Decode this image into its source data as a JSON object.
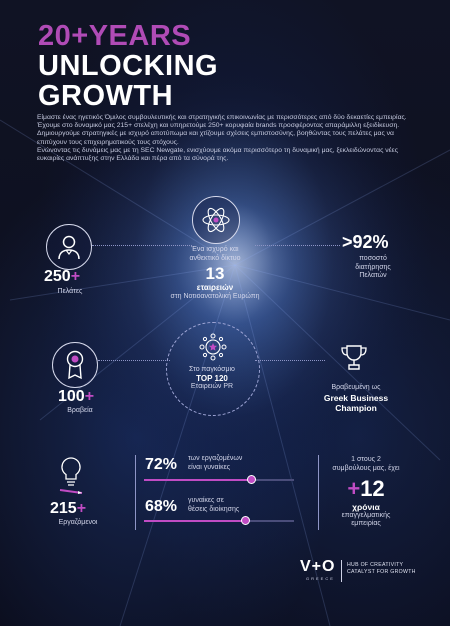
{
  "title": {
    "line1": "20+YEARS",
    "line2": "UNLOCKING",
    "line3": "GROWTH"
  },
  "intro": {
    "p1": "Είμαστε ένας ηγετικός Όμιλος συμβουλευτικής και στρατηγικής επικοινωνίας με περισσότερες από δύο δεκαετίες εμπειρίας. Έχουμε στο δυναμικό μας 215+ στελέχη και υπηρετούμε 250+ κορυφαία brands προσφέροντας απαράμιλλη εξειδίκευση.",
    "p2": "Δημιουργούμε στρατηγικές με ισχυρό αποτύπωμα και χτίζουμε σχέσεις εμπιστοσύνης, βοηθώντας τους πελάτες μας να επιτύχουν τους επιχειρηματικούς τους στόχους.",
    "p3": "Ενώνοντας τις δυνάμεις μας με τη SEC Newgate, ενισχύουμε ακόμα περισσότερο τη δυναμική μας, ξεκλειδώνοντας νέες ευκαιρίες ανάπτυξης στην Ελλάδα και πέρα από τα σύνορά της."
  },
  "stats": {
    "clients": {
      "number": "250",
      "plus": "+",
      "label": "Πελάτες"
    },
    "network": {
      "line1": "Ένα ισχυρό και",
      "line2": "ανθεκτικό δίκτυο",
      "number": "13",
      "unit": "εταιρειών",
      "line3": "στη Νοτιοανατολική Ευρώπη"
    },
    "retention": {
      "number": ">92%",
      "line1": "ποσοστό",
      "line2": "διατήρησης",
      "line3": "Πελατών"
    },
    "awards": {
      "number": "100",
      "plus": "+",
      "label": "Βραβεία"
    },
    "top120": {
      "line1": "Στο παγκόσμιο",
      "line2": "TOP 120",
      "line3": "Εταιρειών PR"
    },
    "champion": {
      "line1": "Βραβευμένη ως",
      "line2": "Greek Business",
      "line3": "Champion"
    },
    "employees": {
      "number": "215",
      "plus": "+",
      "label": "Εργαζόμενοι"
    },
    "women": {
      "value": 72,
      "percent": "72%",
      "line1": "των εργαζομένων",
      "line2": "είναι γυναίκες"
    },
    "women_mgmt": {
      "value": 68,
      "percent": "68%",
      "line1": "γυναίκες σε",
      "line2": "θέσεις διοίκησης"
    },
    "experience": {
      "line1": "1 στους 2",
      "line2": "συμβούλους μας, έχει",
      "plus": "+",
      "number": "12",
      "line3": "χρόνια",
      "line4": "επαγγελματικής",
      "line5": "εμπειρίας"
    }
  },
  "brand": {
    "logo": "V+O",
    "sub": "GREECE",
    "tag1": "HUB OF CREATIVITY",
    "tag2": "CATALYST FOR GROWTH"
  },
  "icons": [
    "person-icon",
    "atom-icon",
    "medal-icon",
    "network-star-icon",
    "trophy-icon",
    "lightbulb-icon"
  ],
  "colors": {
    "accent": "#c04cc4",
    "title_magenta": "#b04bb6",
    "background": "#0b0d1c"
  }
}
